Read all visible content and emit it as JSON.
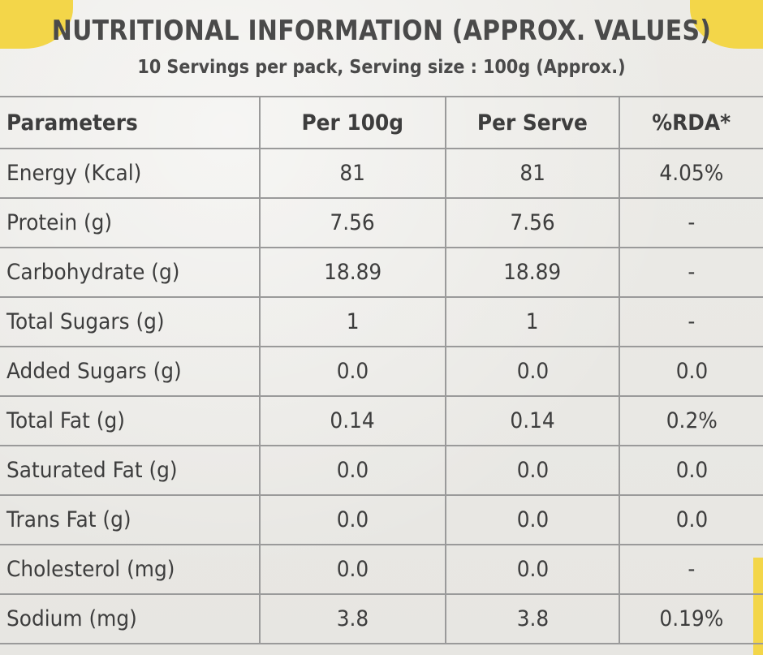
{
  "title": "NUTRITIONAL INFORMATION (APPROX. VALUES)",
  "subtitle": "10 Servings per pack, Serving size : 100g (Approx.)",
  "colors": {
    "panel": "#ecebe7",
    "accent_yellow": "#f3d649",
    "text": "#3d3d3d",
    "grid": "#9a9a9a"
  },
  "table": {
    "headers": [
      "Parameters",
      "Per 100g",
      "Per Serve",
      "%RDA*"
    ],
    "rows": [
      {
        "parameter": "Energy (Kcal)",
        "per_100g": "81",
        "per_serve": "81",
        "rda": "4.05%"
      },
      {
        "parameter": "Protein (g)",
        "per_100g": "7.56",
        "per_serve": "7.56",
        "rda": "-"
      },
      {
        "parameter": "Carbohydrate (g)",
        "per_100g": "18.89",
        "per_serve": "18.89",
        "rda": "-"
      },
      {
        "parameter": "Total Sugars (g)",
        "per_100g": "1",
        "per_serve": "1",
        "rda": "-"
      },
      {
        "parameter": "Added Sugars (g)",
        "per_100g": "0.0",
        "per_serve": "0.0",
        "rda": "0.0"
      },
      {
        "parameter": "Total Fat (g)",
        "per_100g": "0.14",
        "per_serve": "0.14",
        "rda": "0.2%"
      },
      {
        "parameter": "Saturated Fat (g)",
        "per_100g": "0.0",
        "per_serve": "0.0",
        "rda": "0.0"
      },
      {
        "parameter": "Trans Fat (g)",
        "per_100g": "0.0",
        "per_serve": "0.0",
        "rda": "0.0"
      },
      {
        "parameter": "Cholesterol (mg)",
        "per_100g": "0.0",
        "per_serve": "0.0",
        "rda": "-"
      },
      {
        "parameter": "Sodium (mg)",
        "per_100g": "3.8",
        "per_serve": "3.8",
        "rda": "0.19%"
      }
    ]
  }
}
